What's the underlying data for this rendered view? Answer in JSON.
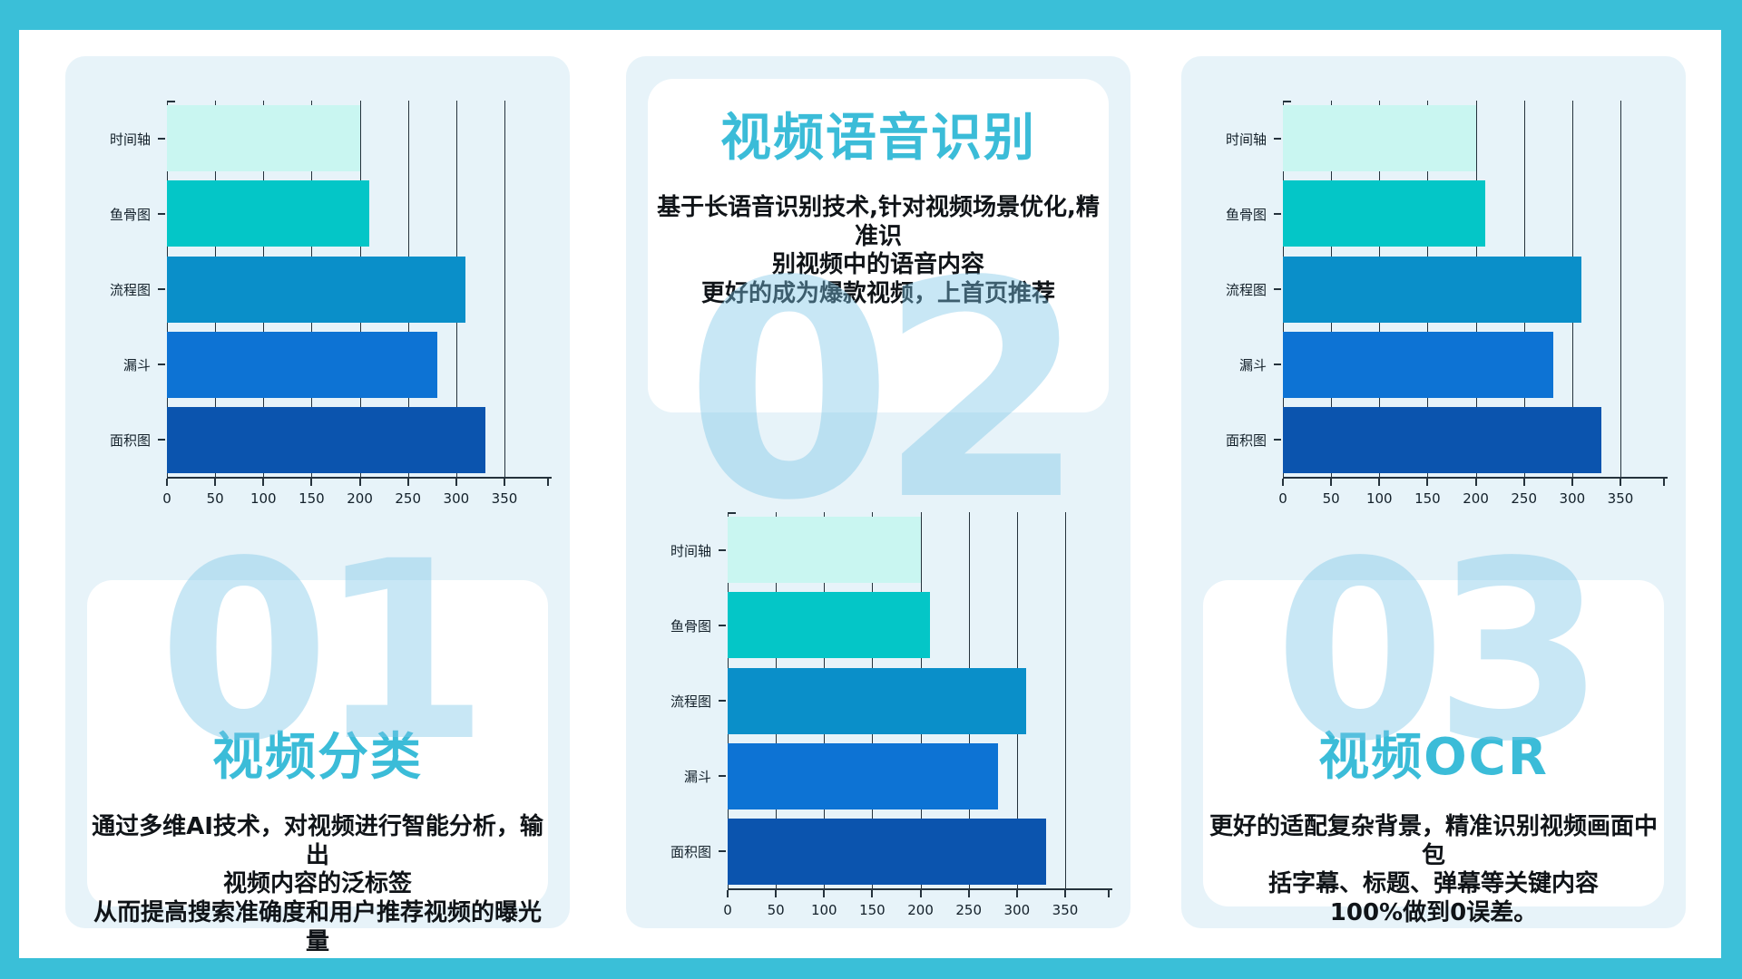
{
  "frame": {
    "border_color": "#3abfd8",
    "page_bg": "#ffffff",
    "panel_bg": "#e7f3f9",
    "title_color": "#3bbcd8",
    "watermark_color": "#7dc6e7"
  },
  "chart_data": {
    "type": "bar",
    "orientation": "horizontal",
    "title": "",
    "xlabel": "",
    "ylabel": "",
    "categories": [
      "时间轴",
      "鱼骨图",
      "流程图",
      "漏斗",
      "面积图"
    ],
    "values": [
      200,
      210,
      310,
      280,
      330
    ],
    "bar_colors": [
      "#c9f6f1",
      "#04c6c7",
      "#0a8fc9",
      "#0d73d4",
      "#0b54ae"
    ],
    "x_ticks": [
      0,
      50,
      100,
      150,
      200,
      250,
      300,
      350
    ],
    "xlim": [
      0,
      395
    ],
    "grid": "vertical gridlines at every x tick, drawn behind bars",
    "legend": "none",
    "instances": "same chart repeated in panel 01, panel 02 and panel 03"
  },
  "panels": [
    {
      "number": "01",
      "title": "视频分类",
      "desc": [
        "通过多维AI技术，对视频进行智能分析，输出",
        "视频内容的泛标签",
        "从而提高搜索准确度和用户推荐视频的曝光量"
      ]
    },
    {
      "number": "02",
      "title": "视频语音识别",
      "desc": [
        "基于长语音识别技术,针对视频场景优化,精准识",
        "别视频中的语音内容",
        "更好的成为爆款视频，上首页推荐"
      ]
    },
    {
      "number": "03",
      "title": "视频OCR",
      "desc": [
        "更好的适配复杂背景，精准识别视频画面中包",
        "括字幕、标题、弹幕等关键内容",
        "100%做到0误差。"
      ]
    }
  ]
}
